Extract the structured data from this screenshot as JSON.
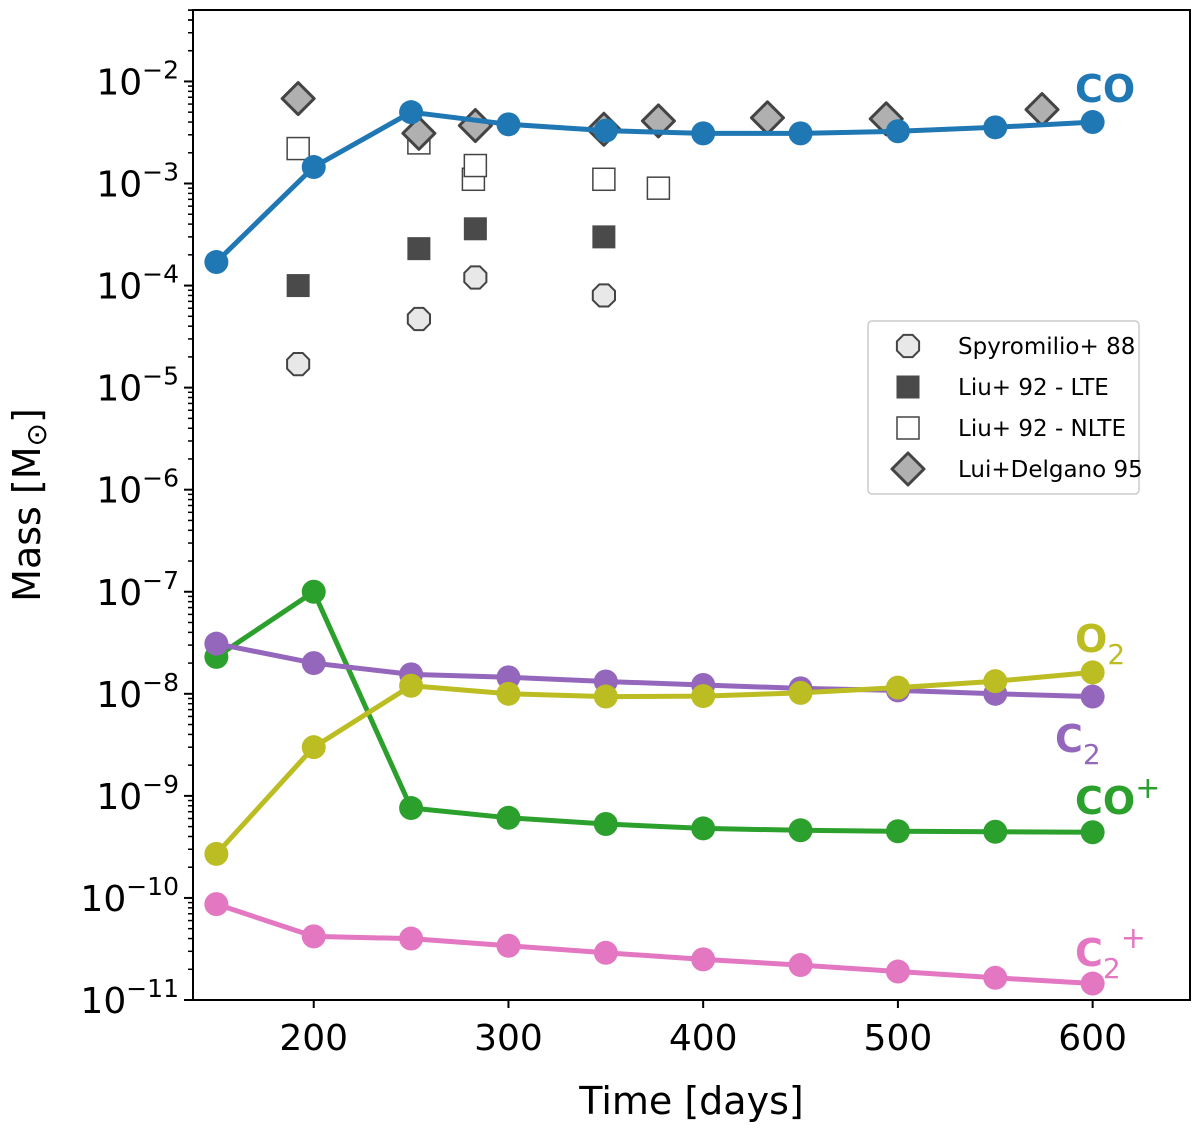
{
  "chart_data": {
    "type": "line",
    "title": "",
    "xlabel": "Time [days]",
    "ylabel": "Mass [M⊙]",
    "ylabel_parts": {
      "text": "Mass [M",
      "symbol": "⊙",
      "close": "]"
    },
    "xlim": [
      138,
      650
    ],
    "ylim_log10": [
      -11,
      -1.3
    ],
    "yscale": "log",
    "x_ticks": [
      200,
      300,
      400,
      500,
      600
    ],
    "x_tick_labels": [
      "200",
      "300",
      "400",
      "500",
      "600"
    ],
    "y_ticks_log10": [
      -11,
      -10,
      -9,
      -8,
      -7,
      -6,
      -5,
      -4,
      -3,
      -2
    ],
    "y_tick_labels": [
      {
        "base": "10",
        "exp": "−11"
      },
      {
        "base": "10",
        "exp": "−10"
      },
      {
        "base": "10",
        "exp": "−9"
      },
      {
        "base": "10",
        "exp": "−8"
      },
      {
        "base": "10",
        "exp": "−7"
      },
      {
        "base": "10",
        "exp": "−6"
      },
      {
        "base": "10",
        "exp": "−5"
      },
      {
        "base": "10",
        "exp": "−4"
      },
      {
        "base": "10",
        "exp": "−3"
      },
      {
        "base": "10",
        "exp": "−2"
      }
    ],
    "x": [
      150,
      200,
      250,
      300,
      350,
      400,
      450,
      500,
      550,
      600
    ],
    "series": [
      {
        "name": "CO",
        "label": {
          "main": "CO",
          "sub": "",
          "sup": ""
        },
        "color": "#1f77b4",
        "values": [
          0.00017,
          0.00145,
          0.005,
          0.0038,
          0.0033,
          0.0031,
          0.0031,
          0.00325,
          0.00355,
          0.004
        ]
      },
      {
        "name": "CO+",
        "label": {
          "main": "CO",
          "sub": "",
          "sup": "+"
        },
        "color": "#2ca02c",
        "values": [
          2.3e-08,
          1e-07,
          7.6e-10,
          6.1e-10,
          5.3e-10,
          4.8e-10,
          4.6e-10,
          4.5e-10,
          4.45e-10,
          4.4e-10
        ]
      },
      {
        "name": "C2",
        "label": {
          "main": "C",
          "sub": "2",
          "sup": ""
        },
        "color": "#9467bd",
        "values": [
          3.1e-08,
          2e-08,
          1.55e-08,
          1.45e-08,
          1.32e-08,
          1.22e-08,
          1.13e-08,
          1.08e-08,
          1e-08,
          9.4e-09
        ]
      },
      {
        "name": "O2",
        "label": {
          "main": "O",
          "sub": "2",
          "sup": ""
        },
        "color": "#bcbd22",
        "values": [
          2.7e-10,
          3e-09,
          1.2e-08,
          1e-08,
          9.4e-09,
          9.5e-09,
          1.02e-08,
          1.15e-08,
          1.33e-08,
          1.62e-08
        ]
      },
      {
        "name": "C2+",
        "label": {
          "main": "C",
          "sub": "2",
          "sup": "+"
        },
        "color": "#e377c2",
        "values": [
          8.7e-11,
          4.2e-11,
          4e-11,
          3.4e-11,
          2.9e-11,
          2.5e-11,
          2.2e-11,
          1.9e-11,
          1.65e-11,
          1.45e-11
        ]
      }
    ],
    "observations": [
      {
        "name": "Spyromilio+ 88",
        "marker": "octagon",
        "fill": "#e8e8e8",
        "edge": "#444444",
        "x": [
          192,
          254,
          283,
          349
        ],
        "y": [
          1.7e-05,
          4.7e-05,
          0.00012,
          8e-05
        ]
      },
      {
        "name": "Liu+ 92 - LTE",
        "marker": "square-filled",
        "fill": "#4a4a4a",
        "edge": "#4a4a4a",
        "x": [
          192,
          254,
          283,
          349
        ],
        "y": [
          0.0001,
          0.00023,
          0.00036,
          0.0003
        ]
      },
      {
        "name": "Liu+ 92 - NLTE",
        "marker": "square-open",
        "fill": "#ffffff",
        "edge": "#444444",
        "x": [
          192,
          254,
          282,
          283,
          349,
          377
        ],
        "y": [
          0.0022,
          0.0025,
          0.0011,
          0.0015,
          0.0011,
          0.0009
        ]
      },
      {
        "name": "Lui+Delgano 95",
        "marker": "diamond",
        "fill": "#b0b0b0",
        "edge": "#444444",
        "x": [
          192,
          254,
          283,
          349,
          377,
          433,
          494,
          574
        ],
        "y": [
          0.0068,
          0.0031,
          0.0037,
          0.0034,
          0.0041,
          0.0044,
          0.0043,
          0.0053
        ]
      }
    ],
    "legend": {
      "placement": "right, upper-middle",
      "entries": [
        "Spyromilio+ 88",
        "Liu+ 92 - LTE",
        "Liu+ 92 - NLTE",
        "Lui+Delgano 95"
      ]
    },
    "grid": false
  }
}
